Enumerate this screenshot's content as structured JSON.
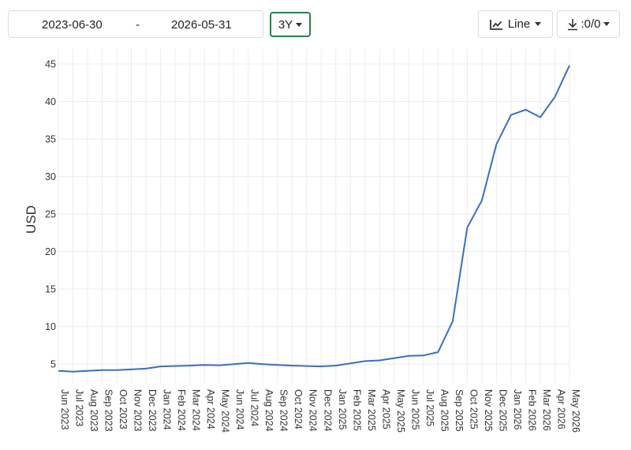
{
  "toolbar": {
    "date_from": "2023-06-30",
    "date_separator": "-",
    "date_to": "2026-05-31",
    "period_label": "3Y",
    "chart_type_label": "Line",
    "download_label": ":0/0"
  },
  "icons": {
    "period": "chevron-down-icon",
    "chart_type": "line-chart-icon",
    "download": "download-icon"
  },
  "chart_data": {
    "type": "line",
    "ylabel": "USD",
    "xlabel": "",
    "ylim": [
      2.5,
      47
    ],
    "yticks": [
      5,
      10,
      15,
      20,
      25,
      30,
      35,
      40,
      45
    ],
    "grid": true,
    "line_color": "#3a6fc4",
    "categories": [
      "Jun 2023",
      "Jul 2023",
      "Aug 2023",
      "Sep 2023",
      "Oct 2023",
      "Nov 2023",
      "Dec 2023",
      "Jan 2024",
      "Feb 2024",
      "Mar 2024",
      "Apr 2024",
      "May 2024",
      "Jun 2024",
      "Jul 2024",
      "Aug 2024",
      "Sep 2024",
      "Oct 2024",
      "Nov 2024",
      "Dec 2024",
      "Jan 2025",
      "Feb 2025",
      "Mar 2025",
      "Apr 2025",
      "May 2025",
      "Jun 2025",
      "Jul 2025",
      "Aug 2025",
      "Sep 2025",
      "Oct 2025",
      "Nov 2025",
      "Dec 2025",
      "Jan 2026",
      "Feb 2026",
      "Mar 2026",
      "Apr 2026",
      "May 2026"
    ],
    "series": [
      {
        "values": [
          4.1,
          4.0,
          4.1,
          4.2,
          4.2,
          4.3,
          4.4,
          4.7,
          4.75,
          4.8,
          4.9,
          4.85,
          5.0,
          5.15,
          5.0,
          4.9,
          4.8,
          4.75,
          4.7,
          4.8,
          5.1,
          5.4,
          5.5,
          5.8,
          6.1,
          6.15,
          6.6,
          10.7,
          23.2,
          26.8,
          34.3,
          38.2,
          38.9,
          37.9,
          40.6,
          44.8
        ]
      }
    ]
  }
}
